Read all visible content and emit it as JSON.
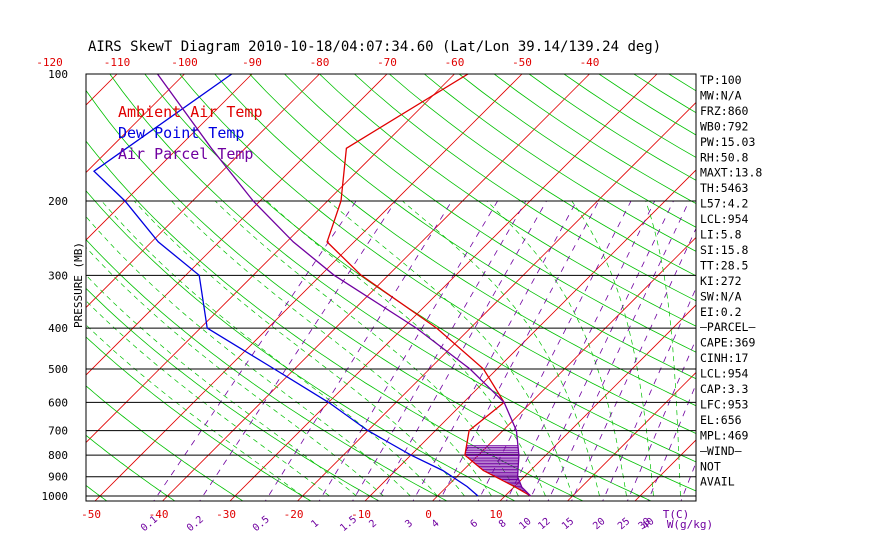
{
  "chart_data": {
    "type": "line",
    "title": "AIRS SkewT Diagram 2010-10-18/04:07:34.60 (Lat/Lon 39.14/139.24 deg)",
    "ylabel": "PRESSURE (MB)",
    "xlabel_bottom": "T(C)",
    "xlabel_mixing": "W(g/kg)",
    "pressure_ticks": [
      100,
      200,
      300,
      400,
      500,
      600,
      700,
      800,
      900,
      1000
    ],
    "top_temp_ticks": [
      -120,
      -110,
      -100,
      -90,
      -80,
      -70,
      -60,
      -50,
      -40
    ],
    "bottom_temp_ticks": [
      -50,
      -40,
      -30,
      -20,
      -10,
      0,
      10
    ],
    "mixing_ratio_ticks": [
      "0.1",
      "0.2",
      "0.5",
      "1",
      "1.5",
      "2",
      "3",
      "4",
      "6",
      "8",
      "10",
      "12",
      "15",
      "20",
      "25",
      "30",
      "40"
    ],
    "legend": [
      {
        "name": "Ambient Air Temp",
        "color": "#e00000"
      },
      {
        "name": "Dew Point Temp",
        "color": "#0000e0"
      },
      {
        "name": "Air Parcel Temp",
        "color": "#7000a0"
      }
    ],
    "series": [
      {
        "name": "Ambient Air Temp",
        "color": "#e00000",
        "pressure": [
          100,
          150,
          200,
          250,
          300,
          400,
          500,
          600,
          700,
          800,
          870,
          950,
          1000
        ],
        "temp_c": [
          -58,
          -65,
          -58,
          -54,
          -44,
          -25,
          -12,
          -4,
          -5,
          -2,
          3,
          10,
          13.8
        ]
      },
      {
        "name": "Dew Point Temp",
        "color": "#0000e0",
        "pressure": [
          100,
          170,
          200,
          250,
          300,
          400,
          500,
          600,
          700,
          800,
          870,
          950,
          1000
        ],
        "temp_c": [
          -93,
          -99,
          -90,
          -79,
          -68,
          -59,
          -43,
          -30,
          -20,
          -10,
          -3,
          3,
          6
        ]
      },
      {
        "name": "Air Parcel Temp",
        "color": "#7000a0",
        "pressure": [
          100,
          150,
          200,
          250,
          300,
          400,
          500,
          600,
          700,
          800,
          900,
          953,
          1000
        ],
        "temp_c": [
          -104,
          -85,
          -71,
          -59,
          -48,
          -28,
          -14,
          -4,
          2,
          6,
          9,
          11.2,
          13.8
        ]
      }
    ],
    "stats": [
      "TP:100",
      "MW:N/A",
      "FRZ:860",
      "WB0:792",
      "PW:15.03",
      "RH:50.8",
      "MAXT:13.8",
      "TH:5463",
      "L57:4.2",
      "LCL:954",
      "LI:5.8",
      "SI:15.8",
      "TT:28.5",
      "KI:272",
      "SW:N/A",
      "EI:0.2",
      "–PARCEL–",
      "CAPE:369",
      "CINH:17",
      "LCL:954",
      "CAP:3.3",
      "LFC:953",
      "EL:656",
      "MPL:469",
      "–WIND–",
      "NOT",
      "AVAIL"
    ]
  }
}
